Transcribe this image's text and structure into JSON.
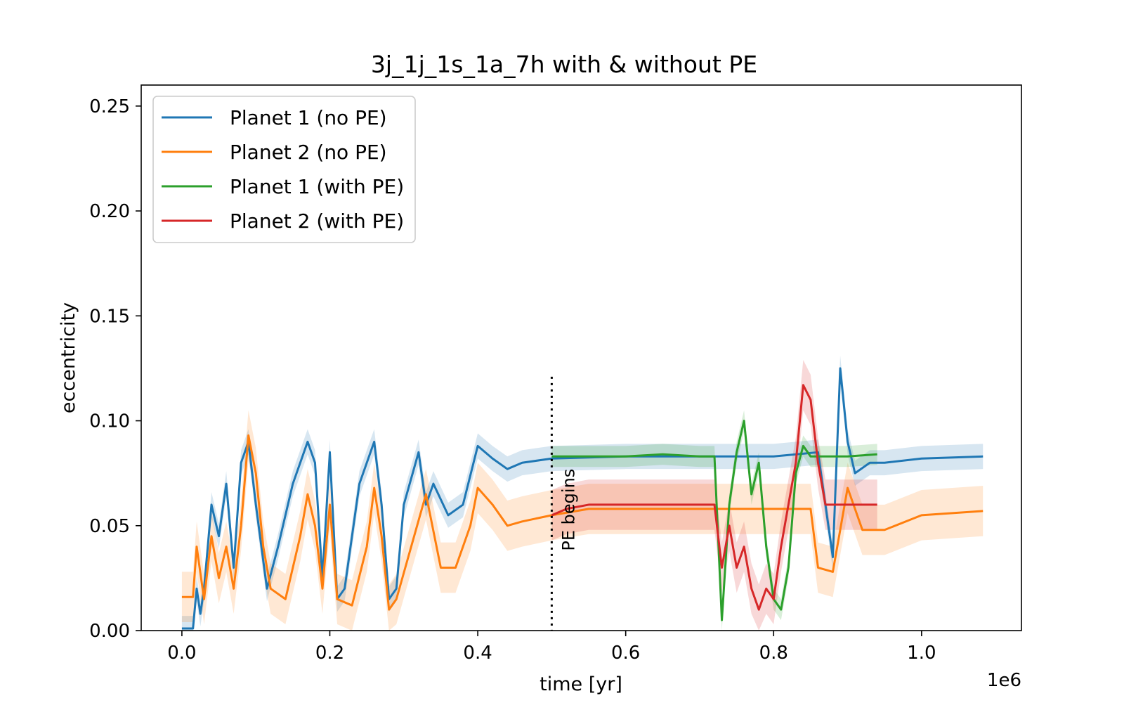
{
  "chart_data": {
    "type": "line",
    "title": "3j_1j_1s_1a_7h with & without PE",
    "xlabel": "time [yr]",
    "ylabel": "eccentricity",
    "x_offset_text": "1e6",
    "xlim": [
      -0.055,
      1.135
    ],
    "ylim": [
      0.0,
      0.26
    ],
    "xticks": [
      0.0,
      0.2,
      0.4,
      0.6,
      0.8,
      1.0
    ],
    "xtick_labels": [
      "0.0",
      "0.2",
      "0.4",
      "0.6",
      "0.8",
      "1.0"
    ],
    "yticks": [
      0.0,
      0.05,
      0.1,
      0.15,
      0.2,
      0.25
    ],
    "ytick_labels": [
      "0.00",
      "0.05",
      "0.10",
      "0.15",
      "0.20",
      "0.25"
    ],
    "grid": false,
    "legend_position": "top-left",
    "annotations": [
      {
        "text": "PE begins",
        "x": 0.5,
        "rotation": "vertical",
        "style": "dotted vertical line"
      }
    ],
    "series": [
      {
        "name": "Planet 1 (no PE)",
        "color": "#1f77b4",
        "band_width": 0.006,
        "points": [
          [
            0.0,
            0.001
          ],
          [
            0.015,
            0.001
          ],
          [
            0.02,
            0.02
          ],
          [
            0.025,
            0.008
          ],
          [
            0.03,
            0.02
          ],
          [
            0.04,
            0.06
          ],
          [
            0.05,
            0.045
          ],
          [
            0.06,
            0.07
          ],
          [
            0.07,
            0.03
          ],
          [
            0.08,
            0.08
          ],
          [
            0.09,
            0.09
          ],
          [
            0.1,
            0.06
          ],
          [
            0.115,
            0.02
          ],
          [
            0.13,
            0.04
          ],
          [
            0.15,
            0.07
          ],
          [
            0.17,
            0.09
          ],
          [
            0.18,
            0.08
          ],
          [
            0.19,
            0.025
          ],
          [
            0.2,
            0.085
          ],
          [
            0.21,
            0.015
          ],
          [
            0.22,
            0.02
          ],
          [
            0.24,
            0.07
          ],
          [
            0.26,
            0.09
          ],
          [
            0.27,
            0.06
          ],
          [
            0.28,
            0.015
          ],
          [
            0.29,
            0.02
          ],
          [
            0.3,
            0.06
          ],
          [
            0.32,
            0.085
          ],
          [
            0.33,
            0.06
          ],
          [
            0.34,
            0.07
          ],
          [
            0.36,
            0.055
          ],
          [
            0.38,
            0.06
          ],
          [
            0.4,
            0.088
          ],
          [
            0.42,
            0.082
          ],
          [
            0.44,
            0.077
          ],
          [
            0.46,
            0.08
          ],
          [
            0.5,
            0.082
          ],
          [
            0.6,
            0.083
          ],
          [
            0.7,
            0.083
          ],
          [
            0.8,
            0.083
          ],
          [
            0.86,
            0.085
          ],
          [
            0.87,
            0.06
          ],
          [
            0.88,
            0.035
          ],
          [
            0.89,
            0.125
          ],
          [
            0.9,
            0.09
          ],
          [
            0.91,
            0.075
          ],
          [
            0.93,
            0.08
          ],
          [
            0.95,
            0.08
          ],
          [
            1.0,
            0.082
          ],
          [
            1.083,
            0.083
          ]
        ]
      },
      {
        "name": "Planet 2 (no PE)",
        "color": "#ff7f0e",
        "band_width": 0.012,
        "points": [
          [
            0.0,
            0.016
          ],
          [
            0.015,
            0.016
          ],
          [
            0.02,
            0.04
          ],
          [
            0.03,
            0.015
          ],
          [
            0.04,
            0.045
          ],
          [
            0.05,
            0.025
          ],
          [
            0.06,
            0.04
          ],
          [
            0.07,
            0.02
          ],
          [
            0.08,
            0.05
          ],
          [
            0.09,
            0.093
          ],
          [
            0.1,
            0.075
          ],
          [
            0.11,
            0.04
          ],
          [
            0.12,
            0.02
          ],
          [
            0.14,
            0.015
          ],
          [
            0.16,
            0.045
          ],
          [
            0.17,
            0.065
          ],
          [
            0.18,
            0.05
          ],
          [
            0.19,
            0.02
          ],
          [
            0.2,
            0.06
          ],
          [
            0.21,
            0.015
          ],
          [
            0.23,
            0.012
          ],
          [
            0.25,
            0.04
          ],
          [
            0.26,
            0.068
          ],
          [
            0.27,
            0.045
          ],
          [
            0.28,
            0.01
          ],
          [
            0.29,
            0.015
          ],
          [
            0.31,
            0.04
          ],
          [
            0.33,
            0.065
          ],
          [
            0.35,
            0.03
          ],
          [
            0.37,
            0.03
          ],
          [
            0.39,
            0.05
          ],
          [
            0.4,
            0.068
          ],
          [
            0.42,
            0.06
          ],
          [
            0.44,
            0.05
          ],
          [
            0.46,
            0.052
          ],
          [
            0.5,
            0.055
          ],
          [
            0.55,
            0.058
          ],
          [
            0.65,
            0.058
          ],
          [
            0.75,
            0.058
          ],
          [
            0.85,
            0.058
          ],
          [
            0.86,
            0.03
          ],
          [
            0.88,
            0.028
          ],
          [
            0.9,
            0.068
          ],
          [
            0.92,
            0.048
          ],
          [
            0.95,
            0.048
          ],
          [
            1.0,
            0.055
          ],
          [
            1.083,
            0.057
          ]
        ]
      },
      {
        "name": "Planet 1 (with PE)",
        "color": "#2ca02c",
        "band_width": 0.005,
        "points": [
          [
            0.5,
            0.083
          ],
          [
            0.55,
            0.083
          ],
          [
            0.6,
            0.083
          ],
          [
            0.65,
            0.084
          ],
          [
            0.7,
            0.083
          ],
          [
            0.72,
            0.083
          ],
          [
            0.73,
            0.005
          ],
          [
            0.74,
            0.06
          ],
          [
            0.75,
            0.085
          ],
          [
            0.76,
            0.1
          ],
          [
            0.77,
            0.065
          ],
          [
            0.78,
            0.08
          ],
          [
            0.79,
            0.04
          ],
          [
            0.8,
            0.015
          ],
          [
            0.81,
            0.01
          ],
          [
            0.82,
            0.03
          ],
          [
            0.83,
            0.075
          ],
          [
            0.84,
            0.088
          ],
          [
            0.85,
            0.083
          ],
          [
            0.86,
            0.083
          ],
          [
            0.9,
            0.083
          ],
          [
            0.94,
            0.084
          ]
        ]
      },
      {
        "name": "Planet 2 (with PE)",
        "color": "#d62728",
        "band_width": 0.012,
        "points": [
          [
            0.5,
            0.055
          ],
          [
            0.52,
            0.058
          ],
          [
            0.55,
            0.06
          ],
          [
            0.6,
            0.06
          ],
          [
            0.65,
            0.06
          ],
          [
            0.7,
            0.06
          ],
          [
            0.72,
            0.06
          ],
          [
            0.73,
            0.03
          ],
          [
            0.74,
            0.05
          ],
          [
            0.75,
            0.03
          ],
          [
            0.76,
            0.04
          ],
          [
            0.77,
            0.02
          ],
          [
            0.78,
            0.01
          ],
          [
            0.79,
            0.02
          ],
          [
            0.8,
            0.015
          ],
          [
            0.81,
            0.04
          ],
          [
            0.82,
            0.06
          ],
          [
            0.83,
            0.08
          ],
          [
            0.84,
            0.117
          ],
          [
            0.85,
            0.11
          ],
          [
            0.86,
            0.08
          ],
          [
            0.87,
            0.06
          ],
          [
            0.9,
            0.06
          ],
          [
            0.94,
            0.06
          ]
        ]
      }
    ]
  }
}
